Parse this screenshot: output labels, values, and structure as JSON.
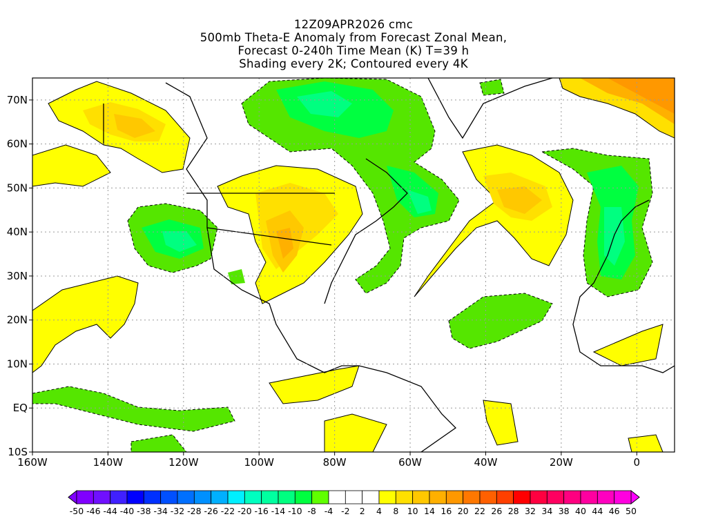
{
  "title": {
    "line1": "12Z09APR2026 cmc",
    "line2": "500mb Theta-E Anomaly from Forecast Zonal Mean,",
    "line3": "Forecast 0-240h Time Mean (K) T=39 h",
    "line4": "Shading every 2K; Contoured every 4K"
  },
  "chart_data": {
    "type": "heatmap",
    "variable": "500mb Theta-E Anomaly (K)",
    "lon_range": [
      -160,
      10
    ],
    "lat_range": [
      -10,
      75
    ],
    "grid": true,
    "x_ticks": [
      "160W",
      "140W",
      "120W",
      "100W",
      "80W",
      "60W",
      "40W",
      "20W",
      "0"
    ],
    "x_tick_values": [
      -160,
      -140,
      -120,
      -100,
      -80,
      -60,
      -40,
      -20,
      0
    ],
    "y_ticks": [
      "10S",
      "EQ",
      "10N",
      "20N",
      "30N",
      "40N",
      "50N",
      "60N",
      "70N"
    ],
    "y_tick_values": [
      -10,
      0,
      10,
      20,
      30,
      40,
      50,
      60,
      70
    ],
    "colorbar": {
      "labels": [
        "-50",
        "-46",
        "-44",
        "-40",
        "-38",
        "-34",
        "-32",
        "-28",
        "-26",
        "-22",
        "-20",
        "-16",
        "-14",
        "-10",
        "-8",
        "-4",
        "-2",
        "2",
        "4",
        "8",
        "10",
        "14",
        "16",
        "20",
        "22",
        "26",
        "28",
        "32",
        "34",
        "38",
        "40",
        "44",
        "46",
        "50"
      ],
      "colors": [
        "#8000ff",
        "#7010ff",
        "#4020ff",
        "#0000ff",
        "#0030ff",
        "#0050ff",
        "#0070ff",
        "#0090ff",
        "#00b0ff",
        "#00f0ff",
        "#00ffc0",
        "#00ffa0",
        "#00ff80",
        "#00ff40",
        "#60ff00",
        "#ffffff",
        "#ffffff",
        "#ffffff",
        "#ffff00",
        "#ffe000",
        "#ffc800",
        "#ffb000",
        "#ff9800",
        "#ff7800",
        "#ff6000",
        "#ff4000",
        "#ff0000",
        "#ff0040",
        "#ff0060",
        "#ff0080",
        "#ff00a0",
        "#ff00c0",
        "#ff00e0"
      ],
      "under_color": "#8000ff",
      "over_color": "#ff00ff"
    },
    "features": [
      {
        "name": "negative anomaly",
        "region": "Hudson Bay / Labrador / Greenland",
        "min_approx": -16
      },
      {
        "name": "negative anomaly",
        "region": "Western US",
        "min_approx": -14
      },
      {
        "name": "negative anomaly",
        "region": "Western Europe / Iberia / NW Africa",
        "min_approx": -14
      },
      {
        "name": "negative anomaly",
        "region": "Central Atlantic 20N",
        "min_approx": -8
      },
      {
        "name": "positive anomaly",
        "region": "Alaska / Yukon",
        "max_approx": 14
      },
      {
        "name": "positive anomaly",
        "region": "Central / Eastern US",
        "max_approx": 16
      },
      {
        "name": "positive anomaly",
        "region": "Central North Atlantic",
        "max_approx": 16
      },
      {
        "name": "positive anomaly",
        "region": "Greenland Sea / NE corner",
        "max_approx": 20
      }
    ]
  }
}
